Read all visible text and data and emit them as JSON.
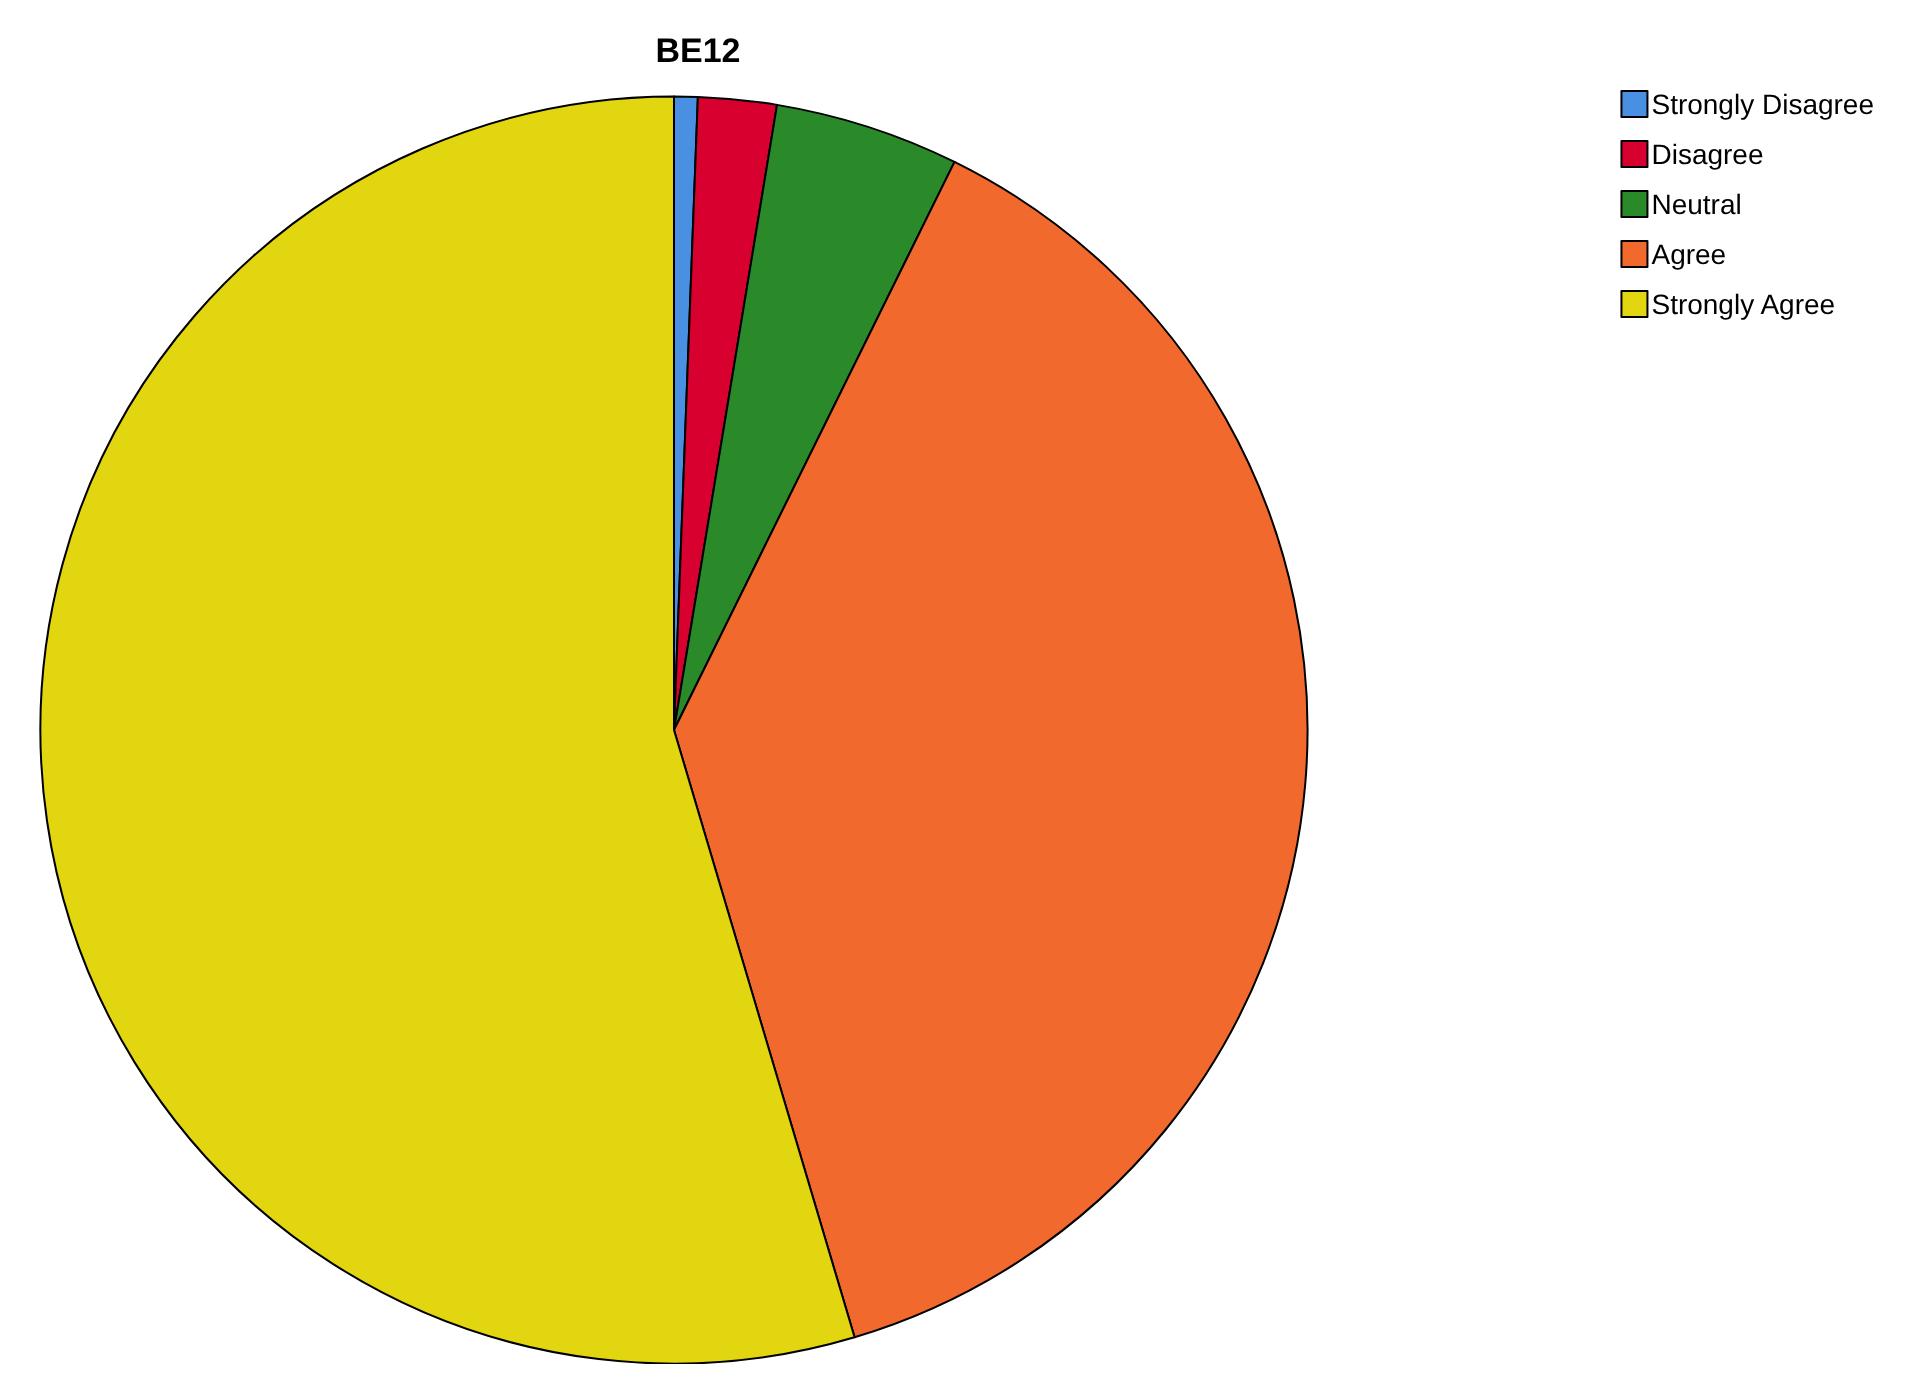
{
  "chart_data": {
    "type": "pie",
    "title": "BE12",
    "categories": [
      "Strongly Disagree",
      "Disagree",
      "Neutral",
      "Agree",
      "Strongly Agree"
    ],
    "values": [
      0.6,
      2,
      4.7,
      38.1,
      54.6
    ],
    "colors": [
      "#4a90e2",
      "#d7002e",
      "#2a8a2a",
      "#f2692e",
      "#e1d60f"
    ],
    "legend": "top right"
  }
}
